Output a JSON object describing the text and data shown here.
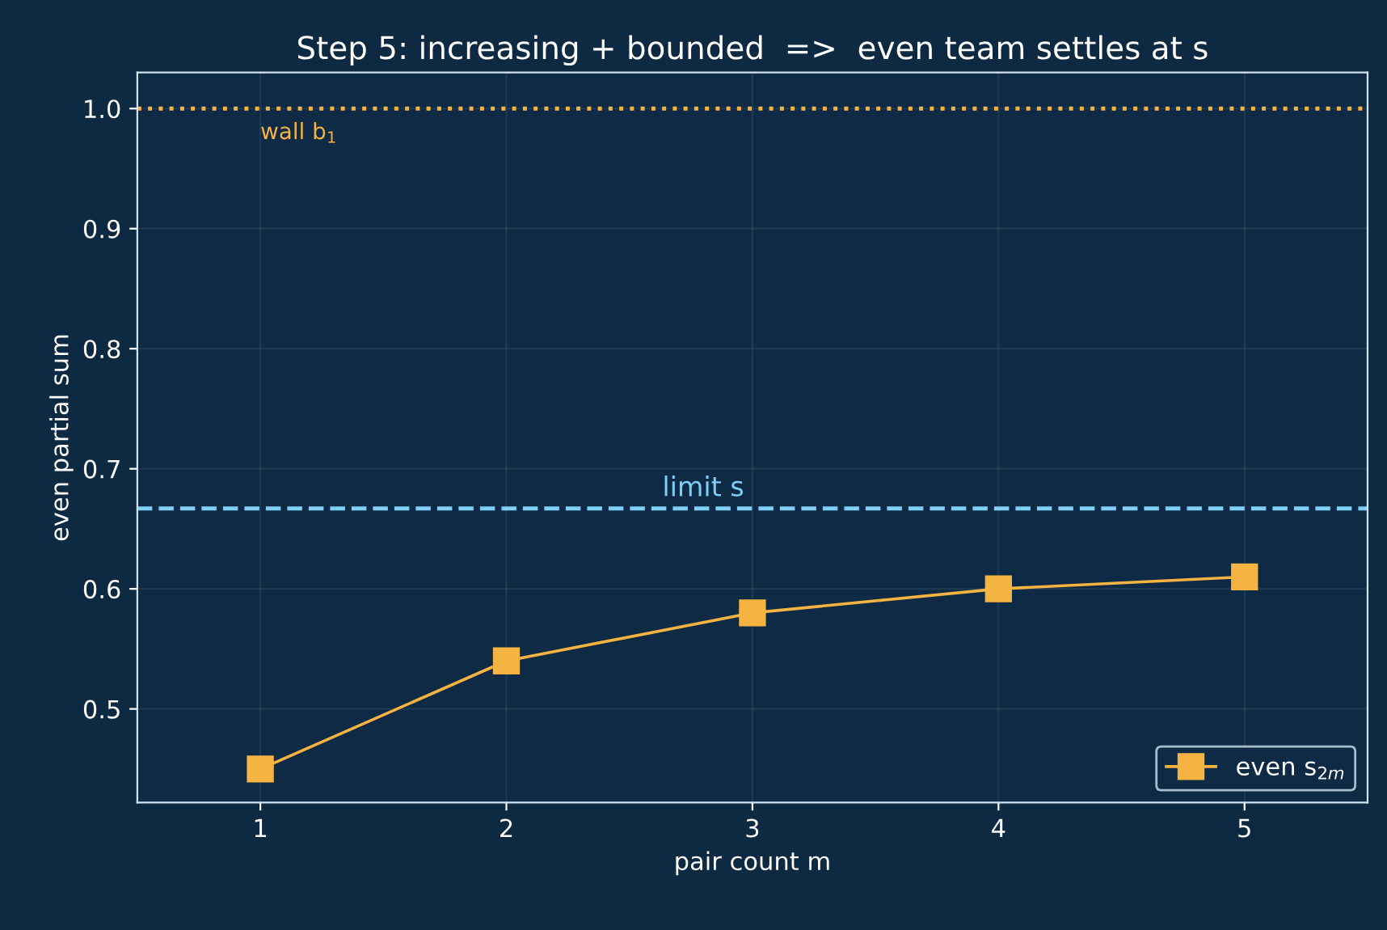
{
  "chart_data": {
    "type": "line",
    "title": "Step 5: increasing + bounded  =>  even team settles at s",
    "xlabel": "pair count m",
    "ylabel": "even partial sum",
    "x": [
      1,
      2,
      3,
      4,
      5
    ],
    "series": [
      {
        "name": "even s$_{2m}$",
        "color": "#f5b342",
        "values": [
          0.45,
          0.54,
          0.58,
          0.6,
          0.61
        ]
      }
    ],
    "xlim": [
      0.5,
      5.5
    ],
    "xticks": [
      1,
      2,
      3,
      4,
      5
    ],
    "ylim": [
      0.422,
      1.03
    ],
    "yticks": [
      0.5,
      0.6,
      0.7,
      0.8,
      0.9,
      {
        "value": 1.0,
        "label": "1.0"
      }
    ],
    "ref_lines": [
      {
        "axis": "y",
        "value": 1.0,
        "label": "wall b$_{1}$",
        "color": "#f5b342",
        "line_style": "dotted"
      },
      {
        "axis": "y",
        "value": 0.667,
        "label": "limit s",
        "color": "#7fcff5",
        "line_style": "dashed"
      }
    ],
    "grid": true,
    "legend": "bottom right",
    "marker": "square",
    "line_style": "solid"
  }
}
